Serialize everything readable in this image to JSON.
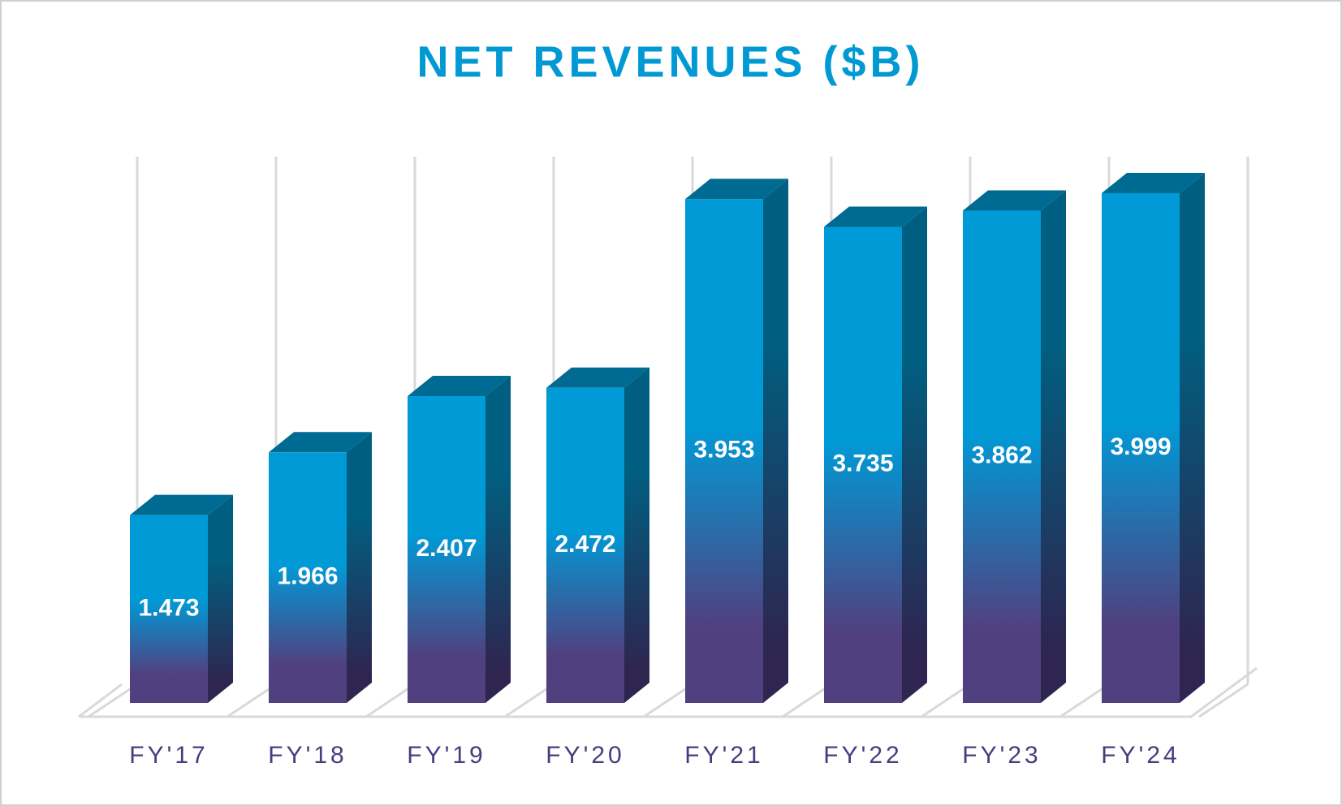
{
  "chart_data": {
    "type": "bar3d",
    "title": "NET REVENUES ($B)",
    "categories": [
      "FY'17",
      "FY'18",
      "FY'19",
      "FY'20",
      "FY'21",
      "FY'22",
      "FY'23",
      "FY'24"
    ],
    "values": [
      1.473,
      1.966,
      2.407,
      2.472,
      3.953,
      3.735,
      3.862,
      3.999
    ],
    "color": "#009ad6"
  }
}
